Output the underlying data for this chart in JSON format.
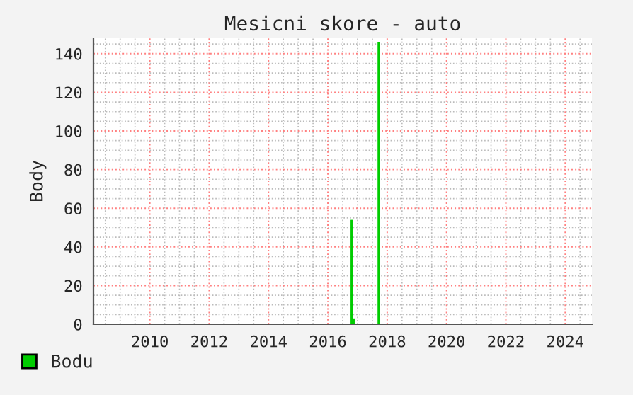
{
  "chart_data": {
    "type": "bar",
    "title": "Mesicni skore - auto",
    "ylabel": "Body",
    "x": [
      2016.8,
      2016.87,
      2017.71
    ],
    "series": [
      {
        "name": "Bodu",
        "color": "#00cc00",
        "values": [
          54,
          3,
          146
        ]
      }
    ],
    "xlim": [
      2008.1,
      2024.9
    ],
    "xticks": [
      2010,
      2012,
      2014,
      2016,
      2018,
      2020,
      2022,
      2024
    ],
    "ylim": [
      0,
      148
    ],
    "yticks": [
      0,
      20,
      40,
      60,
      80,
      100,
      120,
      140
    ],
    "grid": true,
    "legend": "bottom left"
  }
}
